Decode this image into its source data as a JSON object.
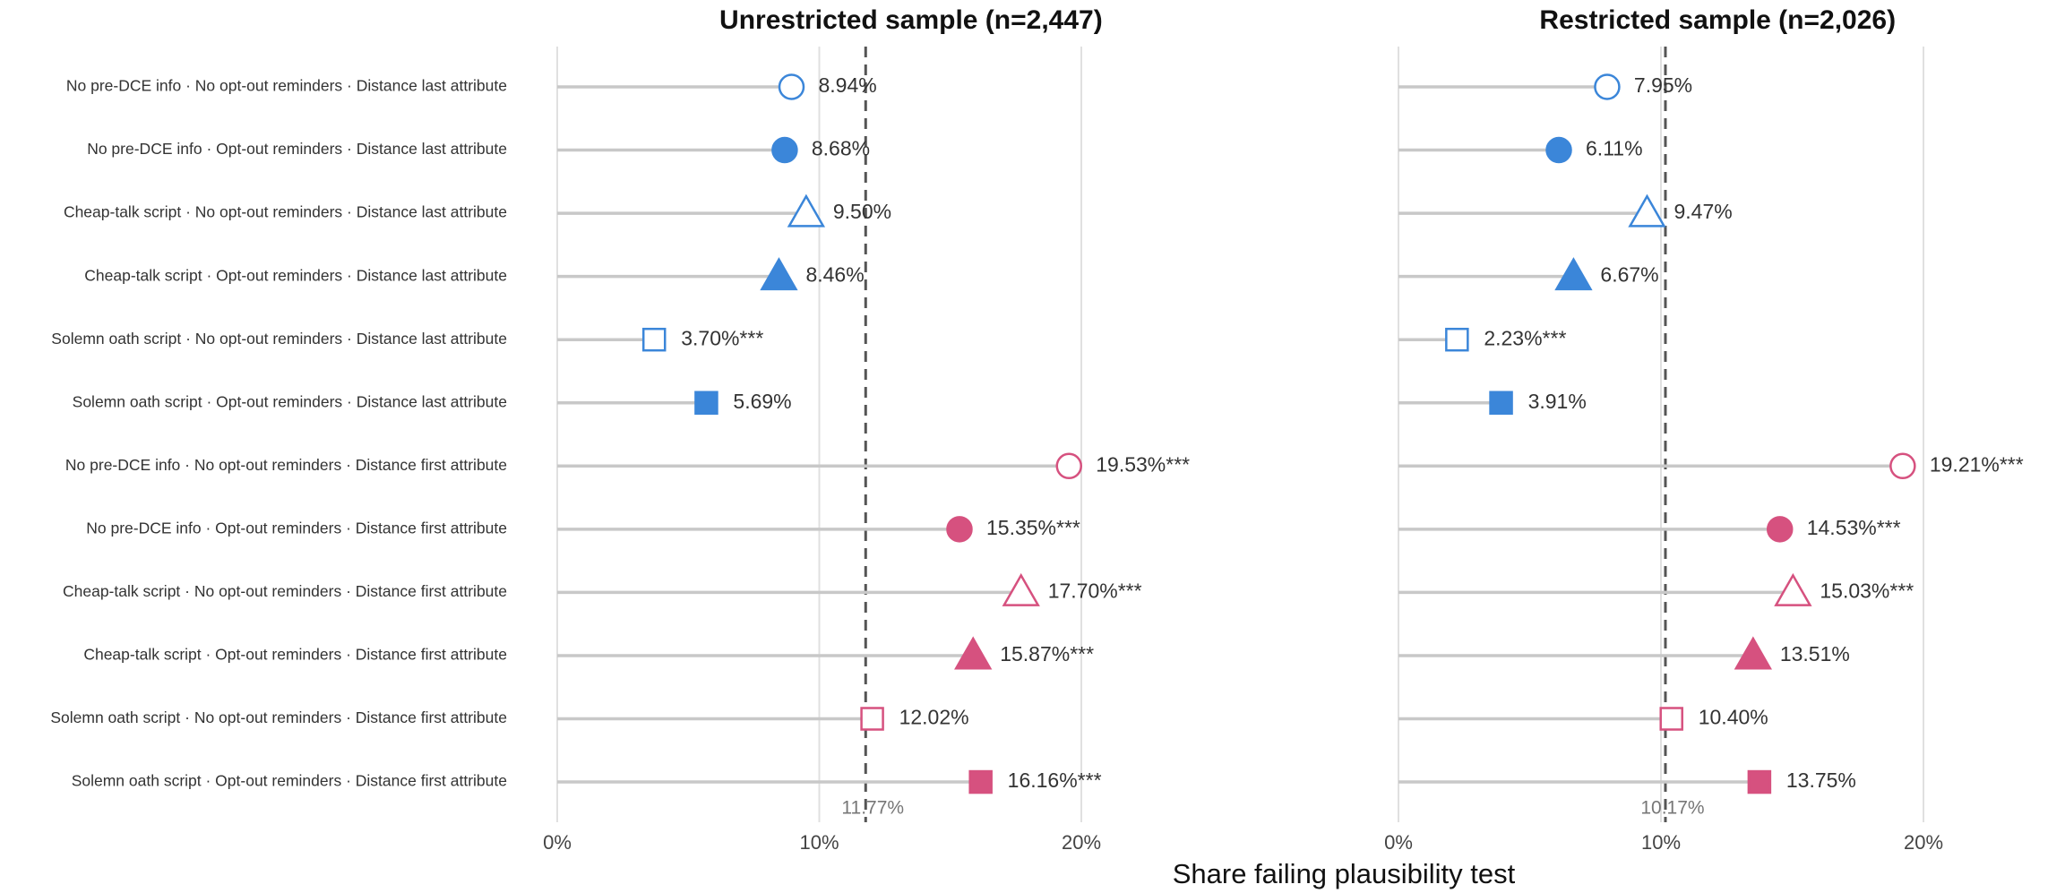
{
  "xlabel": "Share failing plausibility test",
  "categories": [
    "No pre-DCE info · No opt-out reminders · Distance last attribute",
    "No pre-DCE info · Opt-out reminders · Distance last attribute",
    "Cheap-talk script · No opt-out reminders · Distance last attribute",
    "Cheap-talk script · Opt-out reminders · Distance last attribute",
    "Solemn oath script · No opt-out reminders · Distance last attribute",
    "Solemn oath script · Opt-out reminders · Distance last attribute",
    "No pre-DCE info · No opt-out reminders · Distance first attribute",
    "No pre-DCE info · Opt-out reminders · Distance first attribute",
    "Cheap-talk script · No opt-out reminders · Distance first attribute",
    "Cheap-talk script · Opt-out reminders · Distance first attribute",
    "Solemn oath script · No opt-out reminders · Distance first attribute",
    "Solemn oath script · Opt-out reminders · Distance first attribute"
  ],
  "shapes": [
    "circle",
    "circle",
    "triangle",
    "triangle",
    "square",
    "square",
    "circle",
    "circle",
    "triangle",
    "triangle",
    "square",
    "square"
  ],
  "filled": [
    false,
    true,
    false,
    true,
    false,
    true,
    false,
    true,
    false,
    true,
    false,
    true
  ],
  "colors": [
    "#3b86d9",
    "#3b86d9",
    "#3b86d9",
    "#3b86d9",
    "#3b86d9",
    "#3b86d9",
    "#d6517f",
    "#d6517f",
    "#d6517f",
    "#d6517f",
    "#d6517f",
    "#d6517f"
  ],
  "chart_data": [
    {
      "type": "dot",
      "title": "Unrestricted sample (n=2,447)",
      "values": [
        8.94,
        8.68,
        9.5,
        8.46,
        3.7,
        5.69,
        19.53,
        15.35,
        17.7,
        15.87,
        12.02,
        16.16
      ],
      "value_labels": [
        "8.94%",
        "8.68%",
        "9.50%",
        "8.46%",
        "3.70%***",
        "5.69%",
        "19.53%***",
        "15.35%***",
        "17.70%***",
        "15.87%***",
        "12.02%",
        "16.16%***"
      ],
      "reference": 11.77,
      "reference_label": "11.77%",
      "xlim": [
        0,
        27
      ],
      "xticks": [
        {
          "value": 0,
          "label": "0%"
        },
        {
          "value": 10,
          "label": "10%"
        },
        {
          "value": 20,
          "label": "20%"
        }
      ],
      "grid": true
    },
    {
      "type": "dot",
      "title": "Restricted sample (n=2,026)",
      "values": [
        7.95,
        6.11,
        9.47,
        6.67,
        2.23,
        3.91,
        19.21,
        14.53,
        15.03,
        13.51,
        10.4,
        13.75
      ],
      "value_labels": [
        "7.95%",
        "6.11%",
        "9.47%",
        "6.67%",
        "2.23%***",
        "3.91%",
        "19.21%***",
        "14.53%***",
        "15.03%***",
        "13.51%",
        "10.40%",
        "13.75%"
      ],
      "reference": 10.17,
      "reference_label": "10.17%",
      "xlim": [
        0,
        25
      ],
      "xticks": [
        {
          "value": 0,
          "label": "0%"
        },
        {
          "value": 10,
          "label": "10%"
        },
        {
          "value": 20,
          "label": "20%"
        }
      ],
      "grid": true
    }
  ]
}
